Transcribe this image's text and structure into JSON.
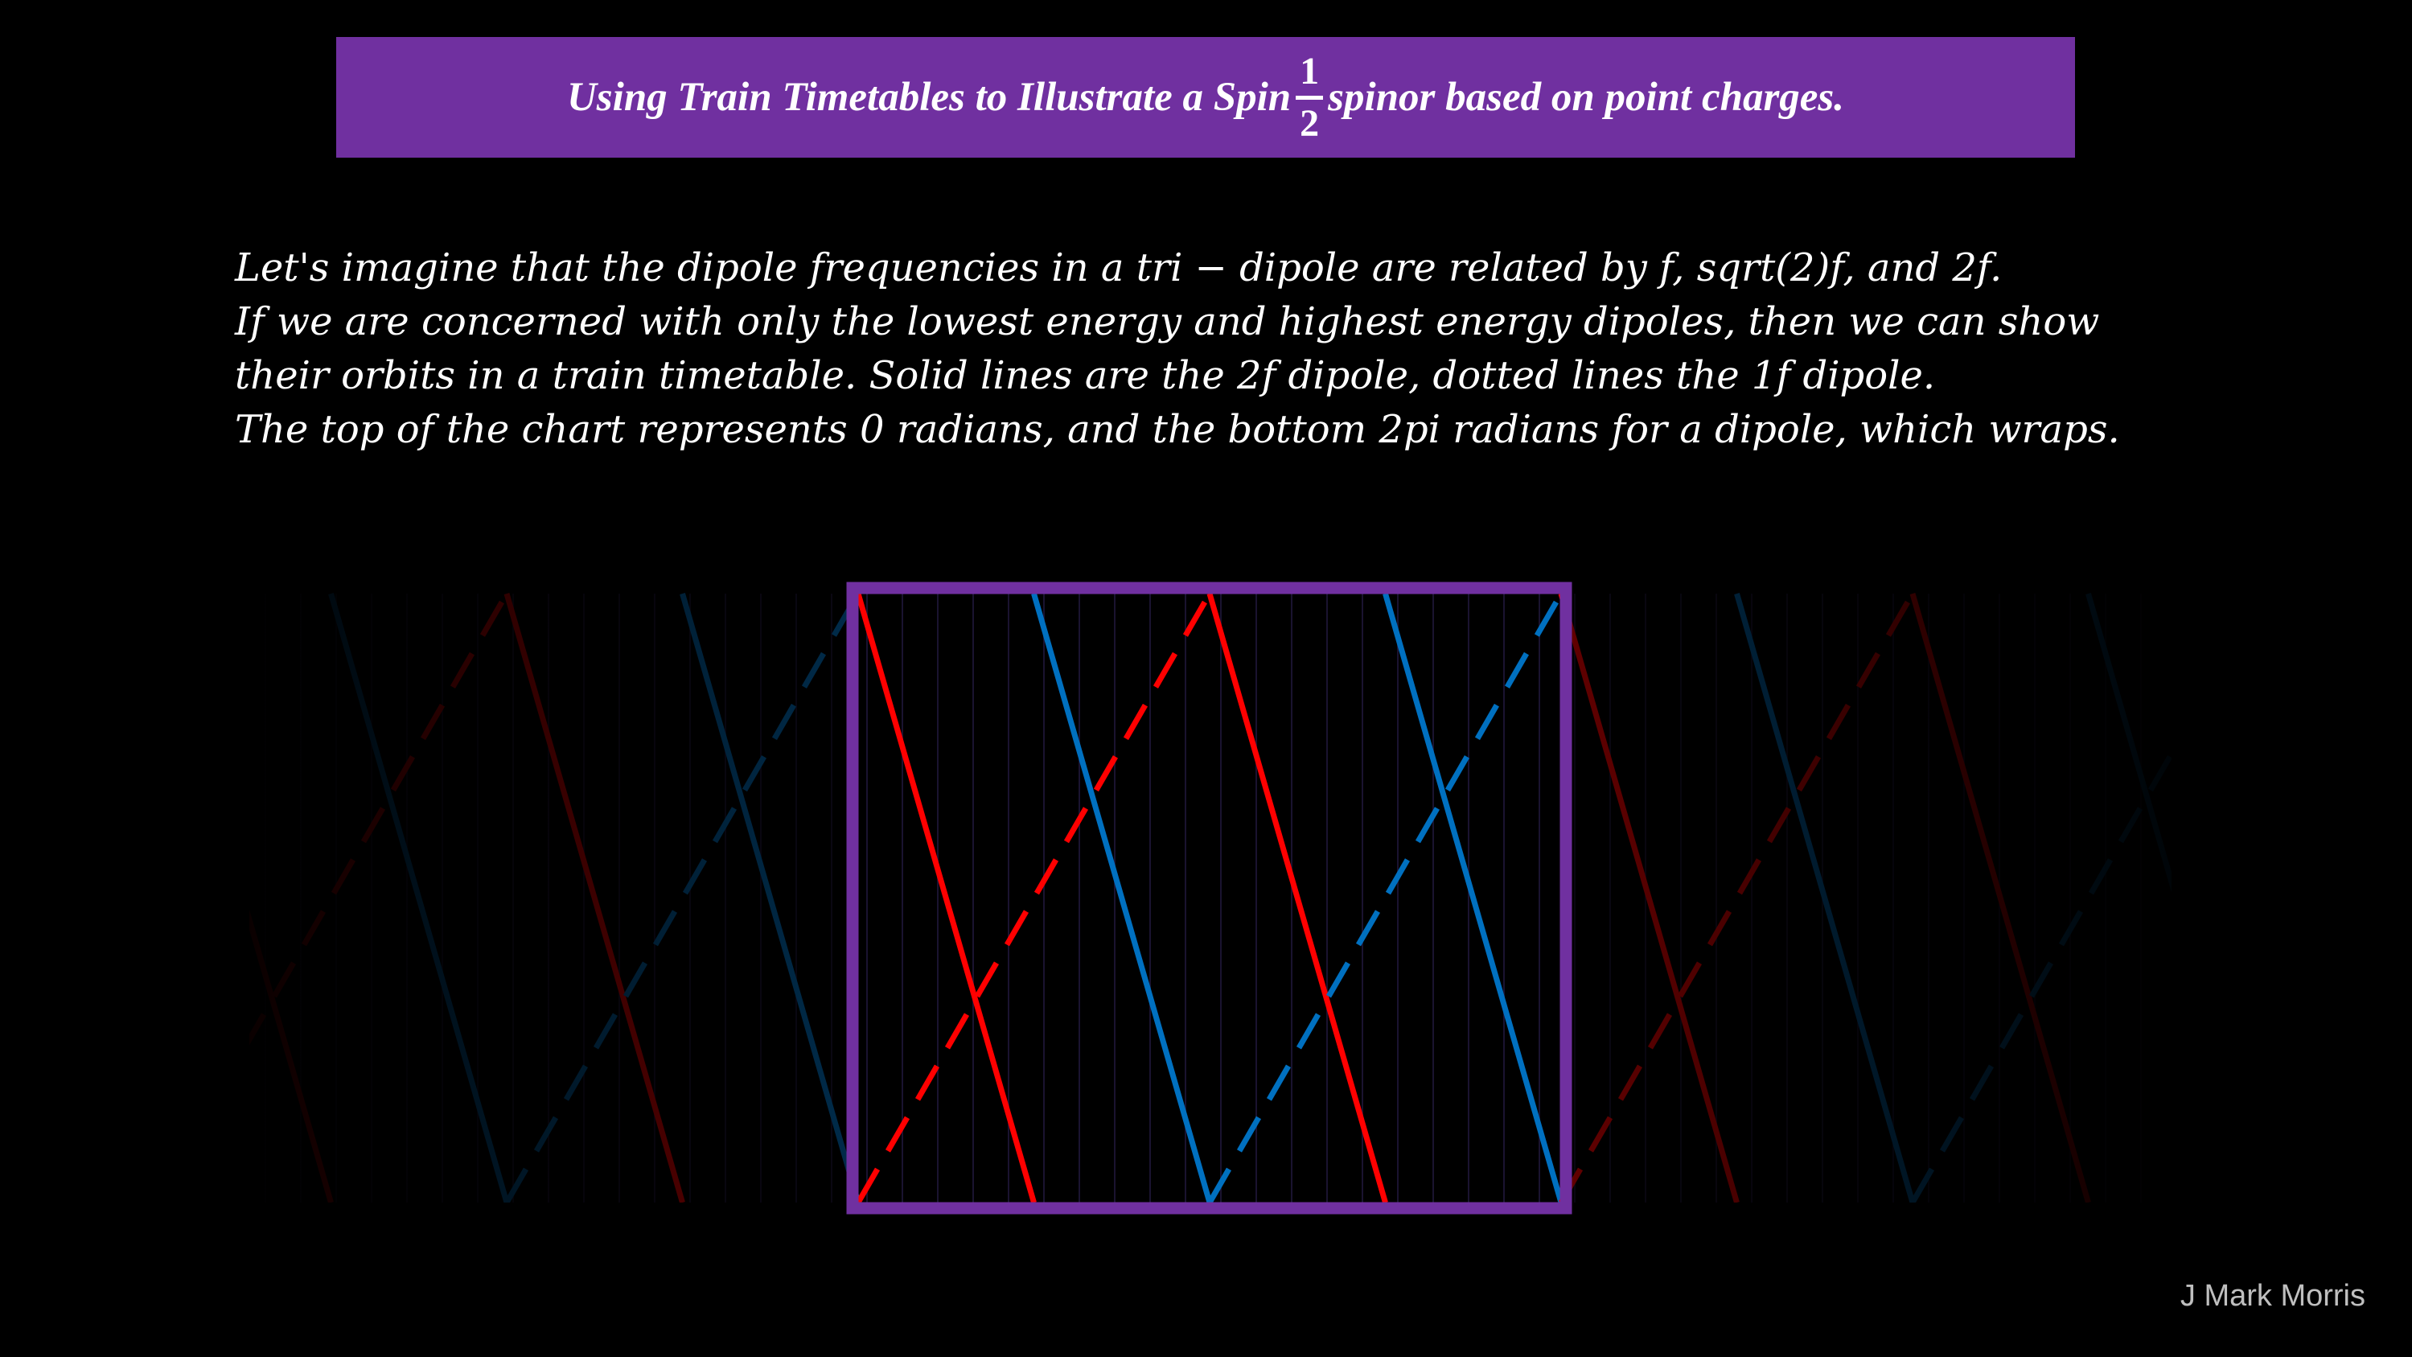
{
  "title": {
    "prefix": "Using Train Timetables to Illustrate a Spin",
    "frac_num": "1",
    "frac_den": "2",
    "suffix": "spinor based on point charges."
  },
  "intro_lines": [
    "Let's imagine that the dipole frequencies in a tri − dipole are related by f, sqrt(2)f, and 2f.",
    "If we are concerned with only the lowest energy and highest energy dipoles, then we can show",
    "their orbits in a train timetable. Solid lines are the 2f dipole, dotted lines the 1f dipole.",
    "The top of the chart represents 0 radians, and the bottom 2pi radians for a dipole, which wraps."
  ],
  "credit": "J Mark Morris",
  "colors": {
    "background": "#000000",
    "banner": "#7030a0",
    "frame": "#7030a0",
    "dipole_red": "#ff0000",
    "dipole_blue": "#0070c0"
  },
  "diagram": {
    "solid_lines": "2f dipole",
    "dotted_lines": "1f dipole",
    "top": "0 radians",
    "bottom": "2pi radians",
    "wraps": true,
    "lines": [
      {
        "dipole": "2f",
        "style": "solid",
        "color": "red"
      },
      {
        "dipole": "2f",
        "style": "solid",
        "color": "blue"
      },
      {
        "dipole": "1f",
        "style": "dotted",
        "color": "red"
      },
      {
        "dipole": "1f",
        "style": "dotted",
        "color": "blue"
      }
    ]
  }
}
